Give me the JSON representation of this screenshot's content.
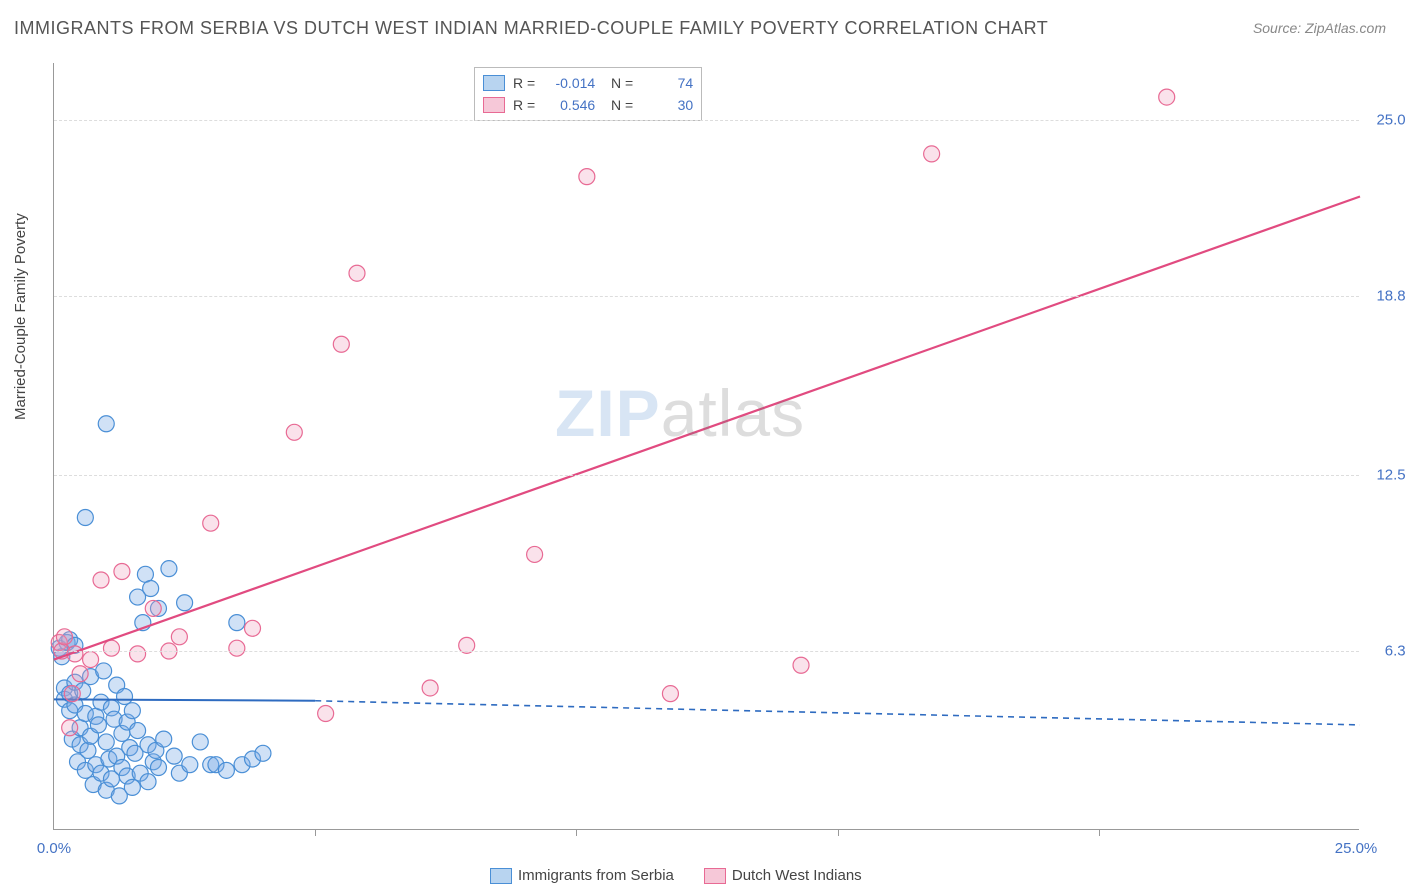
{
  "title": "IMMIGRANTS FROM SERBIA VS DUTCH WEST INDIAN MARRIED-COUPLE FAMILY POVERTY CORRELATION CHART",
  "source_label": "Source: ZipAtlas.com",
  "y_axis_label": "Married-Couple Family Poverty",
  "watermark": {
    "part1": "ZIP",
    "part2": "atlas"
  },
  "chart": {
    "type": "scatter",
    "xlim": [
      0,
      25
    ],
    "ylim": [
      0,
      27
    ],
    "x_ticks": [
      0.0,
      25.0
    ],
    "x_tick_labels": [
      "0.0%",
      "25.0%"
    ],
    "x_minor_ticks": [
      5,
      10,
      15,
      20
    ],
    "y_gridlines": [
      6.3,
      12.5,
      18.8,
      25.0
    ],
    "y_tick_labels": [
      "6.3%",
      "12.5%",
      "18.8%",
      "25.0%"
    ],
    "background_color": "#ffffff",
    "grid_color": "#dddddd",
    "axis_color": "#999999",
    "marker_radius": 8,
    "marker_stroke_width": 1.2,
    "series": [
      {
        "name": "Immigrants from Serbia",
        "fill_color": "rgba(120,170,230,0.35)",
        "stroke_color": "#4a8fd6",
        "swatch_fill": "#b8d4f0",
        "swatch_border": "#4a8fd6",
        "R": "-0.014",
        "N": "74",
        "regression": {
          "solid_until_x": 5.0,
          "y_at_x0": 4.6,
          "y_at_solid_end": 4.55,
          "y_at_x25": 3.7,
          "color": "#2e6bc0",
          "width": 2,
          "dash_extrapolate": "6,5"
        },
        "points": [
          [
            0.1,
            6.4
          ],
          [
            0.15,
            6.1
          ],
          [
            0.2,
            5.0
          ],
          [
            0.2,
            4.6
          ],
          [
            0.25,
            6.6
          ],
          [
            0.3,
            4.2
          ],
          [
            0.3,
            4.8
          ],
          [
            0.35,
            3.2
          ],
          [
            0.4,
            5.2
          ],
          [
            0.4,
            4.4
          ],
          [
            0.45,
            2.4
          ],
          [
            0.5,
            3.0
          ],
          [
            0.5,
            3.6
          ],
          [
            0.55,
            4.9
          ],
          [
            0.6,
            2.1
          ],
          [
            0.6,
            4.1
          ],
          [
            0.65,
            2.8
          ],
          [
            0.7,
            5.4
          ],
          [
            0.7,
            3.3
          ],
          [
            0.75,
            1.6
          ],
          [
            0.8,
            4.0
          ],
          [
            0.8,
            2.3
          ],
          [
            0.85,
            3.7
          ],
          [
            0.9,
            2.0
          ],
          [
            0.9,
            4.5
          ],
          [
            0.95,
            5.6
          ],
          [
            1.0,
            1.4
          ],
          [
            1.0,
            3.1
          ],
          [
            1.05,
            2.5
          ],
          [
            1.1,
            4.3
          ],
          [
            1.1,
            1.8
          ],
          [
            1.15,
            3.9
          ],
          [
            1.2,
            2.6
          ],
          [
            1.2,
            5.1
          ],
          [
            1.25,
            1.2
          ],
          [
            1.3,
            3.4
          ],
          [
            1.3,
            2.2
          ],
          [
            1.35,
            4.7
          ],
          [
            1.4,
            1.9
          ],
          [
            1.4,
            3.8
          ],
          [
            1.45,
            2.9
          ],
          [
            1.5,
            1.5
          ],
          [
            1.5,
            4.2
          ],
          [
            1.55,
            2.7
          ],
          [
            1.6,
            3.5
          ],
          [
            1.6,
            8.2
          ],
          [
            1.65,
            2.0
          ],
          [
            1.7,
            7.3
          ],
          [
            1.75,
            9.0
          ],
          [
            1.8,
            1.7
          ],
          [
            1.8,
            3.0
          ],
          [
            1.85,
            8.5
          ],
          [
            1.9,
            2.4
          ],
          [
            1.95,
            2.8
          ],
          [
            2.0,
            7.8
          ],
          [
            2.0,
            2.2
          ],
          [
            2.1,
            3.2
          ],
          [
            2.2,
            9.2
          ],
          [
            2.3,
            2.6
          ],
          [
            2.4,
            2.0
          ],
          [
            2.5,
            8.0
          ],
          [
            2.6,
            2.3
          ],
          [
            2.8,
            3.1
          ],
          [
            3.0,
            2.3
          ],
          [
            3.1,
            2.3
          ],
          [
            3.3,
            2.1
          ],
          [
            3.5,
            7.3
          ],
          [
            3.6,
            2.3
          ],
          [
            3.8,
            2.5
          ],
          [
            4.0,
            2.7
          ],
          [
            0.6,
            11.0
          ],
          [
            1.0,
            14.3
          ],
          [
            0.3,
            6.7
          ],
          [
            0.4,
            6.5
          ]
        ]
      },
      {
        "name": "Dutch West Indians",
        "fill_color": "rgba(240,160,190,0.30)",
        "stroke_color": "#e86a94",
        "swatch_fill": "#f6c8d8",
        "swatch_border": "#e86a94",
        "R": "0.546",
        "N": "30",
        "regression": {
          "solid_until_x": 25.0,
          "y_at_x0": 6.0,
          "y_at_solid_end": 22.3,
          "y_at_x25": 22.3,
          "color": "#e14b80",
          "width": 2.2,
          "dash_extrapolate": null
        },
        "points": [
          [
            0.1,
            6.6
          ],
          [
            0.15,
            6.3
          ],
          [
            0.2,
            6.8
          ],
          [
            0.3,
            3.6
          ],
          [
            0.35,
            4.8
          ],
          [
            0.4,
            6.2
          ],
          [
            0.5,
            5.5
          ],
          [
            0.7,
            6.0
          ],
          [
            0.9,
            8.8
          ],
          [
            1.1,
            6.4
          ],
          [
            1.3,
            9.1
          ],
          [
            1.6,
            6.2
          ],
          [
            1.9,
            7.8
          ],
          [
            2.2,
            6.3
          ],
          [
            2.4,
            6.8
          ],
          [
            3.0,
            10.8
          ],
          [
            3.5,
            6.4
          ],
          [
            3.8,
            7.1
          ],
          [
            4.6,
            14.0
          ],
          [
            5.2,
            4.1
          ],
          [
            5.5,
            17.1
          ],
          [
            5.8,
            19.6
          ],
          [
            7.2,
            5.0
          ],
          [
            7.9,
            6.5
          ],
          [
            9.2,
            9.7
          ],
          [
            10.2,
            23.0
          ],
          [
            11.8,
            4.8
          ],
          [
            14.3,
            5.8
          ],
          [
            16.8,
            23.8
          ],
          [
            21.3,
            25.8
          ]
        ]
      }
    ]
  },
  "bottom_legend": {
    "items": [
      {
        "label": "Immigrants from Serbia"
      },
      {
        "label": "Dutch West Indians"
      }
    ]
  }
}
